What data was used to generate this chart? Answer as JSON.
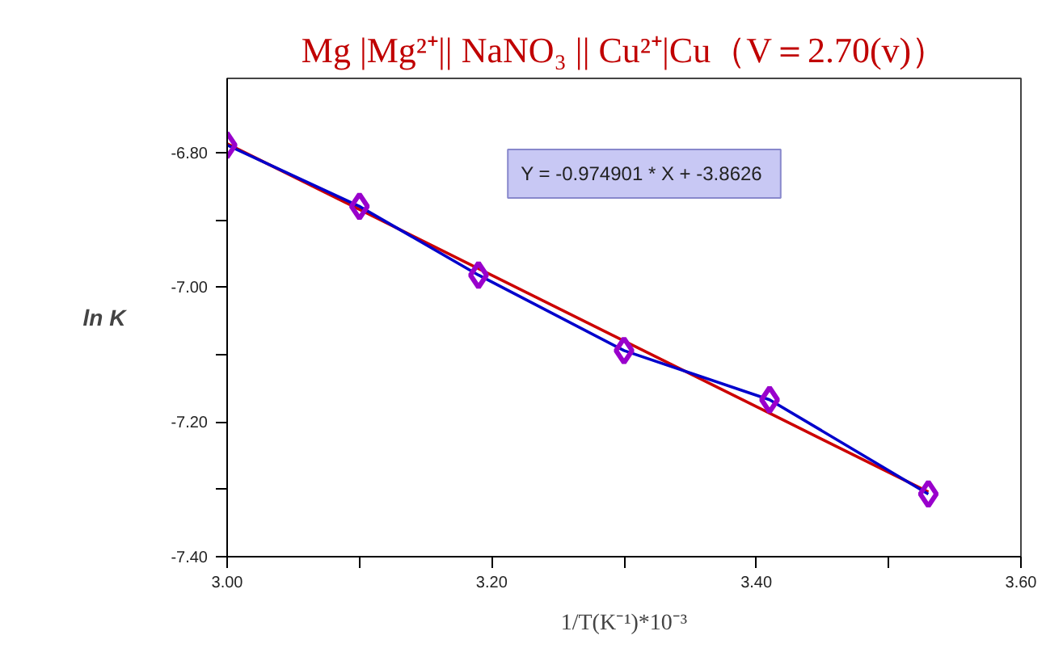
{
  "chart_data": {
    "type": "line",
    "title": "Mg |Mg²⁺|| NaNO₃ || Cu²⁺|Cu（V＝2.70(v)）",
    "xlabel": "1/T(K⁻¹)*10⁻³",
    "ylabel": "ln K",
    "annotations": [
      "Y = -0.974901  * X + -3.8626"
    ],
    "xlim": [
      3.0,
      3.6
    ],
    "xticks": [
      {
        "value": 3.0,
        "label": "3.00"
      },
      {
        "value": 3.1,
        "label": null
      },
      {
        "value": 3.2,
        "label": "3.20"
      },
      {
        "value": 3.3,
        "label": null
      },
      {
        "value": 3.4,
        "label": "3.40"
      },
      {
        "value": 3.5,
        "label": null
      },
      {
        "value": 3.6,
        "label": "3.60"
      }
    ],
    "ylim": [
      -7.4,
      -6.69
    ],
    "yticks": [
      {
        "value": -6.8,
        "label": "-6.80"
      },
      {
        "value": -6.9,
        "label": null
      },
      {
        "value": -7.0,
        "label": "-7.00"
      },
      {
        "value": -7.1,
        "label": null
      },
      {
        "value": -7.2,
        "label": "-7.20"
      },
      {
        "value": -7.3,
        "label": null
      },
      {
        "value": -7.4,
        "label": "-7.40"
      }
    ],
    "grid": false,
    "marker": "diamond",
    "line_style": "solid",
    "series": [
      {
        "color": "#cc0000",
        "marker": "none",
        "x": [
          3.0,
          3.53
        ],
        "values": [
          -6.787,
          -7.304
        ]
      },
      {
        "color": "#0000cc",
        "colors": [
          "#9900cc",
          "#9900cc",
          "#9900cc",
          "#9900cc",
          "#9900cc",
          "#9900cc"
        ],
        "x": [
          3.0,
          3.1,
          3.19,
          3.3,
          3.41,
          3.53
        ],
        "values": [
          -6.789,
          -6.88,
          -6.982,
          -7.094,
          -7.167,
          -7.307
        ]
      }
    ]
  }
}
